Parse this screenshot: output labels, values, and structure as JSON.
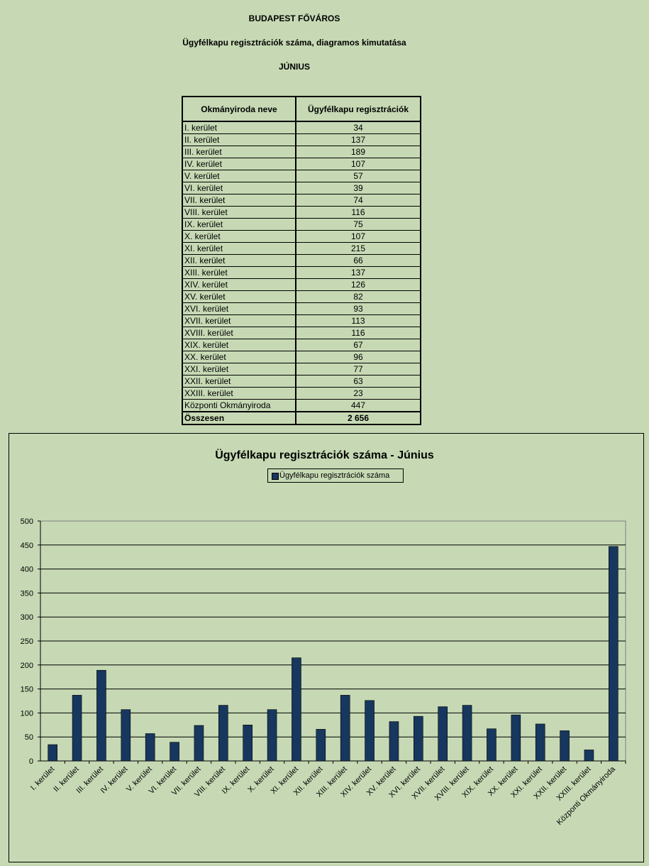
{
  "header": {
    "line1": "BUDAPEST FŐVÁROS",
    "line2": "Ügyfélkapu regisztrációk száma, diagramos kimutatása",
    "line3": "JÚNIUS"
  },
  "table": {
    "col1_header": "Okmányiroda neve",
    "col2_header": "Ügyfélkapu regisztrációk",
    "rows": [
      {
        "name": "I. kerület",
        "value": "34"
      },
      {
        "name": "II. kerület",
        "value": "137"
      },
      {
        "name": "III. kerület",
        "value": "189"
      },
      {
        "name": "IV. kerület",
        "value": "107"
      },
      {
        "name": "V. kerület",
        "value": "57"
      },
      {
        "name": "VI. kerület",
        "value": "39"
      },
      {
        "name": "VII. kerület",
        "value": "74"
      },
      {
        "name": "VIII. kerület",
        "value": "116"
      },
      {
        "name": "IX. kerület",
        "value": "75"
      },
      {
        "name": "X. kerület",
        "value": "107"
      },
      {
        "name": "XI. kerület",
        "value": "215"
      },
      {
        "name": "XII. kerület",
        "value": "66"
      },
      {
        "name": "XIII. kerület",
        "value": "137"
      },
      {
        "name": "XIV. kerület",
        "value": "126"
      },
      {
        "name": "XV. kerület",
        "value": "82"
      },
      {
        "name": "XVI. kerület",
        "value": "93"
      },
      {
        "name": "XVII. kerület",
        "value": "113"
      },
      {
        "name": "XVIII. kerület",
        "value": "116"
      },
      {
        "name": "XIX. kerület",
        "value": "67"
      },
      {
        "name": "XX. kerület",
        "value": "96"
      },
      {
        "name": "XXI. kerület",
        "value": "77"
      },
      {
        "name": "XXII. kerület",
        "value": "63"
      },
      {
        "name": "XXIII. kerület",
        "value": "23"
      },
      {
        "name": "Központi Okmányiroda",
        "value": "447"
      }
    ],
    "total_label": "Összesen",
    "total_value": "2 656"
  },
  "chart_data": {
    "type": "bar",
    "title": "Ügyfélkapu regisztrációk száma - Június",
    "categories": [
      "I. kerület",
      "II. kerület",
      "III. kerület",
      "IV. kerület",
      "V. kerület",
      "VI. kerület",
      "VII. kerület",
      "VIII. kerület",
      "IX. kerület",
      "X. kerület",
      "XI. kerület",
      "XII. kerület",
      "XIII. kerület",
      "XIV. kerület",
      "XV. kerület",
      "XVI. kerület",
      "XVII. kerület",
      "XVIII. kerület",
      "XIX. kerület",
      "XX. kerület",
      "XXI. kerület",
      "XXII. kerület",
      "XXIII. kerület",
      "Központi Okmányiroda"
    ],
    "series": [
      {
        "name": "Ügyfélkapu regisztrációk száma",
        "values": [
          34,
          137,
          189,
          107,
          57,
          39,
          74,
          116,
          75,
          107,
          215,
          66,
          137,
          126,
          82,
          93,
          113,
          116,
          67,
          96,
          77,
          63,
          23,
          447
        ],
        "color": "#17375e"
      }
    ],
    "ylim": [
      0,
      500
    ],
    "yticks": [
      0,
      50,
      100,
      150,
      200,
      250,
      300,
      350,
      400,
      450,
      500
    ],
    "grid": true,
    "legend": "top"
  }
}
